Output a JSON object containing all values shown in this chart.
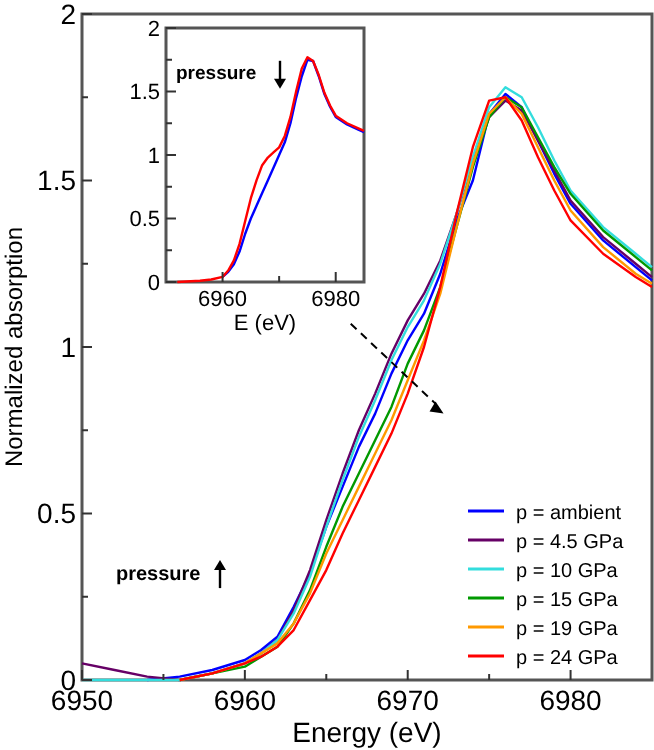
{
  "chart_data": [
    {
      "type": "line",
      "xlabel": "Energy (eV)",
      "ylabel": "Normalized absorption",
      "xlim": [
        6950,
        6985
      ],
      "ylim": [
        0,
        2
      ],
      "xticks": [
        6950,
        {
          "value": 6955,
          "label": null
        },
        6960,
        {
          "value": 6965,
          "label": null
        },
        6970,
        {
          "value": 6975,
          "label": null
        },
        6980
      ],
      "yticks": [
        0,
        {
          "value": 0.25,
          "label": null
        },
        0.5,
        {
          "value": 0.75,
          "label": null
        },
        1,
        {
          "value": 1.25,
          "label": null
        },
        1.5,
        {
          "value": 1.75,
          "label": null
        },
        2
      ],
      "legend": "bottom right",
      "annotations": [
        "pressure"
      ],
      "x": [
        6950,
        6952,
        6954,
        6956,
        6958,
        6960,
        6961,
        6962,
        6963,
        6964,
        6965,
        6966,
        6967,
        6968,
        6969,
        6970,
        6971,
        6972,
        6973,
        6974,
        6975,
        6976,
        6977,
        6978,
        6979,
        6980,
        6982,
        6984,
        6985
      ],
      "series": [
        {
          "name": "p = ambient",
          "color": "#0000ff",
          "values": [
            null,
            null,
            0.0,
            0.01,
            0.03,
            0.06,
            0.09,
            0.13,
            0.22,
            0.32,
            0.46,
            0.58,
            0.7,
            0.8,
            0.92,
            1.02,
            1.1,
            1.22,
            1.38,
            1.5,
            1.7,
            1.76,
            1.72,
            1.62,
            1.52,
            1.43,
            1.32,
            1.24,
            1.2
          ]
        },
        {
          "name": "p = 4.5 GPa",
          "color": "#660066",
          "values": [
            0.05,
            0.03,
            0.01,
            0.0,
            0.02,
            0.05,
            0.08,
            0.12,
            0.21,
            0.33,
            0.48,
            0.62,
            0.75,
            0.86,
            0.98,
            1.08,
            1.16,
            1.26,
            1.4,
            1.56,
            1.69,
            1.74,
            1.71,
            1.62,
            1.53,
            1.44,
            1.33,
            1.25,
            1.21
          ]
        },
        {
          "name": "p = 10 GPa",
          "color": "#33dddd",
          "values": [
            0.0,
            0.0,
            0.0,
            0.0,
            0.02,
            0.05,
            0.08,
            0.12,
            0.2,
            0.31,
            0.46,
            0.6,
            0.73,
            0.84,
            0.96,
            1.06,
            1.14,
            1.25,
            1.4,
            1.57,
            1.72,
            1.78,
            1.75,
            1.66,
            1.56,
            1.47,
            1.36,
            1.28,
            1.24
          ]
        },
        {
          "name": "p = 15 GPa",
          "color": "#009900",
          "values": [
            null,
            null,
            null,
            0.0,
            0.02,
            0.04,
            0.07,
            0.1,
            0.17,
            0.27,
            0.4,
            0.52,
            0.62,
            0.72,
            0.82,
            0.95,
            1.05,
            1.18,
            1.36,
            1.54,
            1.69,
            1.75,
            1.72,
            1.63,
            1.54,
            1.46,
            1.35,
            1.27,
            1.23
          ]
        },
        {
          "name": "p = 19 GPa",
          "color": "#ff9900",
          "values": [
            null,
            null,
            null,
            0.0,
            0.02,
            0.05,
            0.08,
            0.11,
            0.17,
            0.26,
            0.38,
            0.48,
            0.58,
            0.68,
            0.78,
            0.9,
            1.02,
            1.16,
            1.36,
            1.55,
            1.7,
            1.75,
            1.7,
            1.6,
            1.5,
            1.41,
            1.3,
            1.22,
            1.19
          ]
        },
        {
          "name": "p = 24 GPa",
          "color": "#ff0000",
          "values": [
            null,
            null,
            null,
            0.0,
            0.02,
            0.05,
            0.07,
            0.1,
            0.15,
            0.24,
            0.33,
            0.44,
            0.54,
            0.64,
            0.74,
            0.86,
            1.0,
            1.18,
            1.4,
            1.6,
            1.74,
            1.75,
            1.68,
            1.57,
            1.47,
            1.38,
            1.28,
            1.21,
            1.18
          ]
        }
      ]
    },
    {
      "type": "line",
      "xlabel": "E (eV)",
      "xlim": [
        6950,
        6985
      ],
      "ylim": [
        0,
        2
      ],
      "xticks": [
        6960,
        {
          "value": 6970,
          "label": null
        },
        6980
      ],
      "yticks": [
        0,
        {
          "value": 0.25,
          "label": null
        },
        0.5,
        {
          "value": 0.75,
          "label": null
        },
        1,
        {
          "value": 1.25,
          "label": null
        },
        1.5,
        {
          "value": 1.75,
          "label": null
        },
        2
      ],
      "annotations": [
        "pressure"
      ],
      "x": [
        6952,
        6956,
        6958,
        6960,
        6961,
        6962,
        6963,
        6964,
        6965,
        6966,
        6967,
        6968,
        6969,
        6970,
        6971,
        6972,
        6973,
        6974,
        6975,
        6976,
        6977,
        6978,
        6979,
        6980,
        6982,
        6984,
        6985
      ],
      "series": [
        {
          "color": "#0000ff",
          "values": [
            null,
            null,
            null,
            0.04,
            0.08,
            0.14,
            0.24,
            0.38,
            0.5,
            0.6,
            0.7,
            0.8,
            0.9,
            1.0,
            1.1,
            1.25,
            1.45,
            1.62,
            1.75,
            1.74,
            1.62,
            1.48,
            1.38,
            1.3,
            1.24,
            1.2,
            1.18
          ]
        },
        {
          "color": "#ff0000",
          "values": [
            0.0,
            0.01,
            0.02,
            0.04,
            0.09,
            0.17,
            0.3,
            0.48,
            0.66,
            0.8,
            0.92,
            0.98,
            1.02,
            1.06,
            1.15,
            1.3,
            1.5,
            1.68,
            1.77,
            1.74,
            1.63,
            1.49,
            1.39,
            1.31,
            1.25,
            1.21,
            1.19
          ]
        }
      ]
    }
  ]
}
